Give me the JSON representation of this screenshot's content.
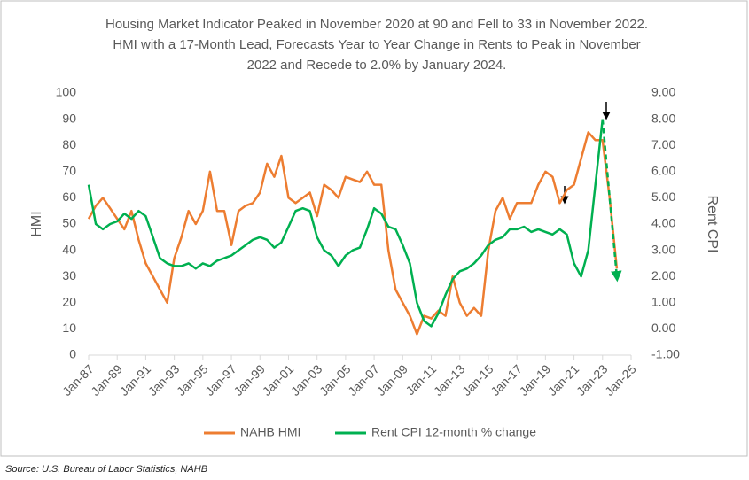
{
  "chart_data": {
    "type": "line",
    "title": [
      "Housing Market Indicator Peaked in November 2020 at 90 and Fell to 33 in November 2022.",
      "HMI with a 17-Month Lead, Forecasts Year to Year Change in Rents to Peak in November",
      "2022 and Recede to 2.0% by January 2024."
    ],
    "ylabel": "HMI",
    "y2label": "Rent CPI",
    "source": "Source: U.S. Bureau of Labor Statistics, NAHB",
    "x": [
      "Jan-87",
      "Jul-87",
      "Jan-88",
      "Jul-88",
      "Jan-89",
      "Jul-89",
      "Jan-90",
      "Jul-90",
      "Jan-91",
      "Jul-91",
      "Jan-92",
      "Jul-92",
      "Jan-93",
      "Jul-93",
      "Jan-94",
      "Jul-94",
      "Jan-95",
      "Jul-95",
      "Jan-96",
      "Jul-96",
      "Jan-97",
      "Jul-97",
      "Jan-98",
      "Jul-98",
      "Jan-99",
      "Jul-99",
      "Jan-00",
      "Jul-00",
      "Jan-01",
      "Jul-01",
      "Jan-02",
      "Jul-02",
      "Jan-03",
      "Jul-03",
      "Jan-04",
      "Jul-04",
      "Jan-05",
      "Jul-05",
      "Jan-06",
      "Jul-06",
      "Jan-07",
      "Jul-07",
      "Jan-08",
      "Jul-08",
      "Jan-09",
      "Jul-09",
      "Jan-10",
      "Jul-10",
      "Jan-11",
      "Jul-11",
      "Jan-12",
      "Jul-12",
      "Jan-13",
      "Jul-13",
      "Jan-14",
      "Jul-14",
      "Jan-15",
      "Jul-15",
      "Jan-16",
      "Jul-16",
      "Jan-17",
      "Jul-17",
      "Jan-18",
      "Jul-18",
      "Jan-19",
      "Jul-19",
      "Jan-20",
      "Jul-20",
      "Jan-21",
      "Jul-21",
      "Jan-22",
      "Jul-22",
      "Jan-23",
      "Jul-23",
      "Jan-24"
    ],
    "xlim": [
      "Jan-87",
      "Jan-25"
    ],
    "xticks": [
      "Jan-87",
      "Jan-89",
      "Jan-91",
      "Jan-93",
      "Jan-95",
      "Jan-97",
      "Jan-99",
      "Jan-01",
      "Jan-03",
      "Jan-05",
      "Jan-07",
      "Jan-09",
      "Jan-11",
      "Jan-13",
      "Jan-15",
      "Jan-17",
      "Jan-19",
      "Jan-21",
      "Jan-23",
      "Jan-25"
    ],
    "ylim": [
      0,
      100
    ],
    "yticks": [
      0,
      10,
      20,
      30,
      40,
      50,
      60,
      70,
      80,
      90,
      100
    ],
    "y2lim": [
      -1,
      9
    ],
    "y2ticks": [
      {
        "value": -1,
        "label": "-1.00"
      },
      {
        "value": 0,
        "label": "0.00"
      },
      {
        "value": 1,
        "label": "1.00"
      },
      {
        "value": 2,
        "label": "2.00"
      },
      {
        "value": 3,
        "label": "3.00"
      },
      {
        "value": 4,
        "label": "4.00"
      },
      {
        "value": 5,
        "label": "5.00"
      },
      {
        "value": 6,
        "label": "6.00"
      },
      {
        "value": 7,
        "label": "7.00"
      },
      {
        "value": 8,
        "label": "8.00"
      },
      {
        "value": 9,
        "label": "9.00"
      }
    ],
    "series": [
      {
        "name": "NAHB HMI",
        "color": "#ed7d31",
        "values": [
          52,
          57,
          60,
          56,
          52,
          48,
          55,
          44,
          35,
          30,
          25,
          20,
          37,
          45,
          55,
          50,
          55,
          70,
          55,
          55,
          42,
          55,
          57,
          58,
          62,
          73,
          68,
          76,
          60,
          58,
          60,
          62,
          53,
          65,
          63,
          60,
          68,
          67,
          66,
          70,
          65,
          65,
          40,
          25,
          20,
          15,
          8,
          15,
          14,
          17,
          15,
          30,
          20,
          15,
          18,
          15,
          40,
          55,
          60,
          52,
          58,
          58,
          58,
          65,
          70,
          68,
          58,
          63,
          65,
          75,
          85,
          82,
          82,
          60,
          33
        ]
      },
      {
        "name": "Rent CPI 12-month % change",
        "color": "#00b050",
        "axis": "y2",
        "values": [
          5.5,
          4.0,
          3.8,
          4.0,
          4.1,
          4.4,
          4.2,
          4.5,
          4.3,
          3.5,
          2.7,
          2.5,
          2.4,
          2.4,
          2.5,
          2.3,
          2.5,
          2.4,
          2.6,
          2.7,
          2.8,
          3.0,
          3.2,
          3.4,
          3.5,
          3.4,
          3.1,
          3.3,
          3.9,
          4.5,
          4.6,
          4.5,
          3.5,
          3.0,
          2.8,
          2.4,
          2.8,
          3.0,
          3.1,
          3.8,
          4.6,
          4.4,
          3.9,
          3.8,
          3.2,
          2.5,
          1.0,
          0.3,
          0.1,
          0.6,
          1.3,
          1.9,
          2.2,
          2.3,
          2.5,
          2.8,
          3.2,
          3.4,
          3.5,
          3.8,
          3.8,
          3.9,
          3.7,
          3.8,
          3.7,
          3.6,
          3.8,
          3.6,
          2.5,
          2.0,
          3.0,
          5.5,
          8.0,
          null,
          null
        ],
        "forecast_values": [
          null,
          null,
          null,
          null,
          null,
          null,
          null,
          null,
          null,
          null,
          null,
          null,
          null,
          null,
          null,
          null,
          null,
          null,
          null,
          null,
          null,
          null,
          null,
          null,
          null,
          null,
          null,
          null,
          null,
          null,
          null,
          null,
          null,
          null,
          null,
          null,
          null,
          null,
          null,
          null,
          null,
          null,
          null,
          null,
          null,
          null,
          null,
          null,
          null,
          null,
          null,
          null,
          null,
          null,
          null,
          null,
          null,
          null,
          null,
          null,
          null,
          null,
          null,
          null,
          null,
          null,
          null,
          null,
          null,
          null,
          null,
          null,
          8.0,
          5.0,
          2.0
        ]
      }
    ]
  }
}
